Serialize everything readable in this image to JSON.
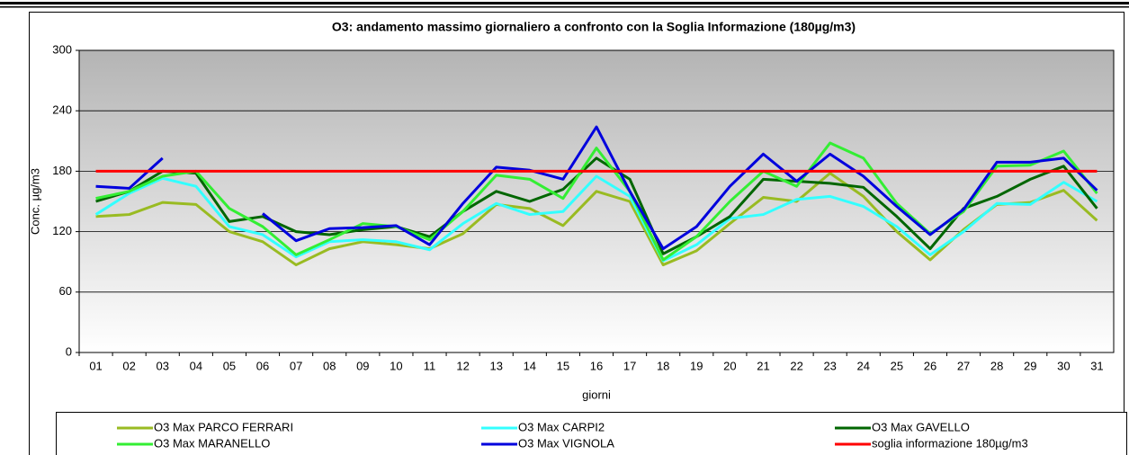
{
  "chart_data": {
    "type": "line",
    "title": "O3: andamento massimo giornaliero a confronto con la Soglia Informazione (180µg/m3)",
    "y_label": "Conc. µg/m3",
    "x_label": "giorni",
    "categories": [
      "01",
      "02",
      "03",
      "04",
      "05",
      "06",
      "07",
      "08",
      "09",
      "10",
      "11",
      "12",
      "13",
      "14",
      "15",
      "16",
      "17",
      "18",
      "19",
      "20",
      "21",
      "22",
      "23",
      "24",
      "25",
      "26",
      "27",
      "28",
      "29",
      "30",
      "31"
    ],
    "ylim": [
      0,
      300
    ],
    "yticks": [
      0,
      60,
      120,
      180,
      240,
      300
    ],
    "grid": true,
    "series": [
      {
        "name": "O3 Max PARCO FERRARI",
        "color": "#99bb22",
        "values": [
          135,
          137,
          149,
          147,
          120,
          110,
          87,
          103,
          110,
          107,
          103,
          118,
          147,
          143,
          126,
          160,
          150,
          87,
          101,
          128,
          154,
          150,
          178,
          155,
          120,
          92,
          122,
          147,
          149,
          161,
          131
        ]
      },
      {
        "name": "O3 Max  CARPI2",
        "color": "#33ffff",
        "values": [
          137,
          158,
          173,
          165,
          125,
          117,
          95,
          110,
          112,
          110,
          102,
          128,
          148,
          137,
          140,
          175,
          155,
          91,
          107,
          133,
          137,
          152,
          155,
          145,
          125,
          97,
          120,
          148,
          147,
          169,
          150
        ]
      },
      {
        "name": "O3 Max  GAVELLO",
        "color": "#006600",
        "values": [
          150,
          160,
          180,
          178,
          130,
          135,
          120,
          117,
          122,
          125,
          115,
          140,
          160,
          150,
          162,
          193,
          172,
          98,
          115,
          135,
          172,
          170,
          168,
          164,
          135,
          103,
          143,
          155,
          172,
          185,
          143
        ]
      },
      {
        "name": "O3 Max  MARANELLO",
        "color": "#33ee33",
        "values": [
          153,
          160,
          175,
          180,
          143,
          125,
          97,
          112,
          128,
          125,
          112,
          140,
          176,
          172,
          153,
          203,
          160,
          92,
          115,
          150,
          180,
          165,
          208,
          193,
          148,
          118,
          140,
          185,
          186,
          200,
          158
        ]
      },
      {
        "name": "O3 Max VIGNOLA",
        "color": "#0000dd",
        "values": [
          165,
          163,
          193,
          null,
          null,
          138,
          111,
          123,
          124,
          126,
          107,
          148,
          184,
          181,
          172,
          224,
          160,
          103,
          125,
          165,
          197,
          170,
          197,
          175,
          145,
          117,
          142,
          189,
          189,
          193,
          161
        ]
      },
      {
        "name": "soglia informazione 180µg/m3",
        "color": "#ff0000",
        "values": [
          180,
          180,
          180,
          180,
          180,
          180,
          180,
          180,
          180,
          180,
          180,
          180,
          180,
          180,
          180,
          180,
          180,
          180,
          180,
          180,
          180,
          180,
          180,
          180,
          180,
          180,
          180,
          180,
          180,
          180,
          180
        ]
      }
    ]
  }
}
